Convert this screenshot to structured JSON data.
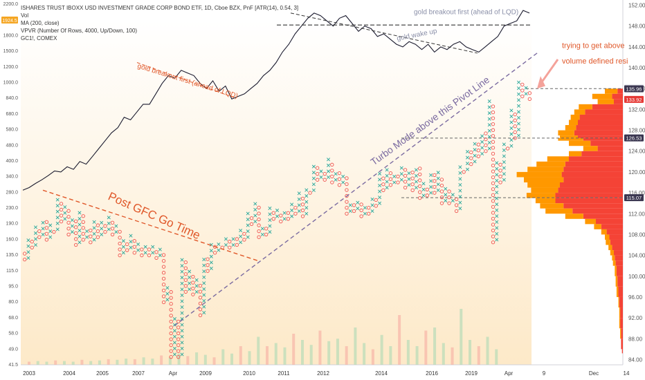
{
  "chart_data": {
    "type": "pnf",
    "legend": {
      "title": "ISHARES TRUST IBOXX USD INVESTMENT GRADE CORP BOND ETF, 1D, Cboe BZX, PnF [ATR(14), 0.54, 3]",
      "lines": [
        "Vol",
        "MA (200, close)",
        "VPVR (Number Of Rows, 4000, Up/Down, 100)",
        "GC1!, COMEX"
      ]
    },
    "price_axis": {
      "ticks": [
        "152.00",
        "148.00",
        "144.00",
        "140.00",
        "136.00",
        "132.00",
        "128.00",
        "124.00",
        "120.00",
        "116.00",
        "112.00",
        "108.00",
        "104.00",
        "100.00",
        "96.00",
        "92.00",
        "88.00",
        "84.00"
      ],
      "ylim": [
        83,
        153
      ]
    },
    "gold_axis": {
      "ticks": [
        "2200.0",
        "2000.0",
        "1800.0",
        "1500.0",
        "1200.0",
        "1000.0",
        "840.0",
        "680.0",
        "580.0",
        "480.0",
        "400.0",
        "340.0",
        "280.0",
        "230.0",
        "190.0",
        "160.0",
        "135.0",
        "115.0",
        "95.0",
        "80.0",
        "68.0",
        "58.0",
        "49.0",
        "41.5"
      ],
      "badge": "1924.5"
    },
    "x_axis": {
      "ticks": [
        "2003",
        "2004",
        "2005",
        "2007",
        "Apr",
        "2009",
        "2010",
        "2011",
        "2012",
        "2014",
        "2016",
        "2019",
        "Apr",
        "9",
        "Dec",
        "14"
      ]
    },
    "gold_series": {
      "name": "GC1!, COMEX",
      "y": [
        116.5,
        117.0,
        117.8,
        118.5,
        119.3,
        120.2,
        120.0,
        121.0,
        120.5,
        122.0,
        121.5,
        123.0,
        124.5,
        126.0,
        127.5,
        128.5,
        130.5,
        130.0,
        131.5,
        133.0,
        133.0,
        135.0,
        137.0,
        138.5,
        138.0,
        139.5,
        139.0,
        138.5,
        137.0,
        136.0,
        137.5,
        135.5,
        136.5,
        134.0,
        134.5,
        135.0,
        136.0,
        137.0,
        138.5,
        139.5,
        141.0,
        143.0,
        144.5,
        146.5,
        148.0,
        149.5,
        150.5,
        150.0,
        149.0,
        148.0,
        149.5,
        150.0,
        148.5,
        147.0,
        148.0,
        147.5,
        146.0,
        146.5,
        145.5,
        144.5,
        144.0,
        145.0,
        144.5,
        143.5,
        144.5,
        143.0,
        144.0,
        143.5,
        144.5,
        145.0,
        144.0,
        143.5,
        143.0,
        144.0,
        145.0,
        146.0,
        148.0,
        148.5,
        149.0,
        151.0,
        150.5
      ]
    },
    "pnf_columns": [
      {
        "d": "O",
        "lo": 103.2,
        "hi": 104.5
      },
      {
        "d": "X",
        "lo": 103.5,
        "hi": 107.5
      },
      {
        "d": "O",
        "lo": 105.5,
        "hi": 107.0
      },
      {
        "d": "X",
        "lo": 106.0,
        "hi": 109.5
      },
      {
        "d": "O",
        "lo": 107.5,
        "hi": 109.0
      },
      {
        "d": "X",
        "lo": 108.0,
        "hi": 111.0
      },
      {
        "d": "O",
        "lo": 107.0,
        "hi": 110.5
      },
      {
        "d": "X",
        "lo": 107.5,
        "hi": 110.0
      },
      {
        "d": "O",
        "lo": 108.5,
        "hi": 109.5
      },
      {
        "d": "X",
        "lo": 109.0,
        "hi": 115.0
      },
      {
        "d": "O",
        "lo": 110.5,
        "hi": 114.5
      },
      {
        "d": "X",
        "lo": 111.0,
        "hi": 113.5
      },
      {
        "d": "O",
        "lo": 108.0,
        "hi": 113.0
      },
      {
        "d": "X",
        "lo": 108.5,
        "hi": 111.5
      },
      {
        "d": "O",
        "lo": 106.0,
        "hi": 111.0
      },
      {
        "d": "X",
        "lo": 106.5,
        "hi": 112.5
      },
      {
        "d": "O",
        "lo": 107.0,
        "hi": 112.0
      },
      {
        "d": "X",
        "lo": 107.5,
        "hi": 109.5
      },
      {
        "d": "O",
        "lo": 106.5,
        "hi": 109.0
      },
      {
        "d": "X",
        "lo": 107.0,
        "hi": 110.5
      },
      {
        "d": "O",
        "lo": 107.5,
        "hi": 110.0
      },
      {
        "d": "X",
        "lo": 108.0,
        "hi": 111.0
      },
      {
        "d": "O",
        "lo": 108.5,
        "hi": 110.5
      },
      {
        "d": "X",
        "lo": 109.0,
        "hi": 111.5
      },
      {
        "d": "O",
        "lo": 108.0,
        "hi": 111.0
      },
      {
        "d": "X",
        "lo": 108.5,
        "hi": 110.0
      },
      {
        "d": "O",
        "lo": 104.0,
        "hi": 109.5
      },
      {
        "d": "X",
        "lo": 104.5,
        "hi": 107.5
      },
      {
        "d": "O",
        "lo": 105.0,
        "hi": 107.0
      },
      {
        "d": "X",
        "lo": 105.5,
        "hi": 108.0
      },
      {
        "d": "O",
        "lo": 104.5,
        "hi": 107.5
      },
      {
        "d": "X",
        "lo": 105.0,
        "hi": 106.5
      },
      {
        "d": "O",
        "lo": 104.0,
        "hi": 106.0
      },
      {
        "d": "X",
        "lo": 104.5,
        "hi": 106.5
      },
      {
        "d": "O",
        "lo": 104.0,
        "hi": 106.0
      },
      {
        "d": "X",
        "lo": 104.5,
        "hi": 106.0
      },
      {
        "d": "O",
        "lo": 103.5,
        "hi": 105.5
      },
      {
        "d": "X",
        "lo": 104.0,
        "hi": 105.5
      },
      {
        "d": "O",
        "lo": 95.0,
        "hi": 105.0
      },
      {
        "d": "X",
        "lo": 95.5,
        "hi": 98.0
      },
      {
        "d": "O",
        "lo": 84.5,
        "hi": 97.5
      },
      {
        "d": "X",
        "lo": 85.0,
        "hi": 92.0
      },
      {
        "d": "O",
        "lo": 84.5,
        "hi": 91.5
      },
      {
        "d": "X",
        "lo": 85.0,
        "hi": 103.5
      },
      {
        "d": "O",
        "lo": 97.0,
        "hi": 103.0
      },
      {
        "d": "X",
        "lo": 97.5,
        "hi": 101.0
      },
      {
        "d": "O",
        "lo": 96.5,
        "hi": 100.5
      },
      {
        "d": "X",
        "lo": 97.0,
        "hi": 99.5
      },
      {
        "d": "O",
        "lo": 92.5,
        "hi": 99.0
      },
      {
        "d": "X",
        "lo": 93.0,
        "hi": 104.0
      },
      {
        "d": "O",
        "lo": 101.0,
        "hi": 103.5
      },
      {
        "d": "X",
        "lo": 101.5,
        "hi": 106.5
      },
      {
        "d": "O",
        "lo": 104.5,
        "hi": 106.0
      },
      {
        "d": "X",
        "lo": 105.0,
        "hi": 107.0
      },
      {
        "d": "O",
        "lo": 105.5,
        "hi": 106.5
      },
      {
        "d": "X",
        "lo": 106.0,
        "hi": 107.5
      },
      {
        "d": "O",
        "lo": 105.5,
        "hi": 107.0
      },
      {
        "d": "X",
        "lo": 106.0,
        "hi": 108.0
      },
      {
        "d": "O",
        "lo": 106.0,
        "hi": 107.5
      },
      {
        "d": "X",
        "lo": 106.5,
        "hi": 109.0
      },
      {
        "d": "O",
        "lo": 107.0,
        "hi": 108.5
      },
      {
        "d": "X",
        "lo": 107.5,
        "hi": 112.5
      },
      {
        "d": "O",
        "lo": 110.0,
        "hi": 112.0
      },
      {
        "d": "X",
        "lo": 110.5,
        "hi": 114.0
      },
      {
        "d": "O",
        "lo": 107.5,
        "hi": 113.5
      },
      {
        "d": "X",
        "lo": 108.0,
        "hi": 110.0
      },
      {
        "d": "O",
        "lo": 108.0,
        "hi": 109.5
      },
      {
        "d": "X",
        "lo": 108.5,
        "hi": 113.5
      },
      {
        "d": "O",
        "lo": 111.0,
        "hi": 113.0
      },
      {
        "d": "X",
        "lo": 111.5,
        "hi": 113.0
      },
      {
        "d": "O",
        "lo": 110.5,
        "hi": 112.5
      },
      {
        "d": "X",
        "lo": 111.0,
        "hi": 113.0
      },
      {
        "d": "O",
        "lo": 111.0,
        "hi": 112.5
      },
      {
        "d": "X",
        "lo": 111.5,
        "hi": 114.5
      },
      {
        "d": "O",
        "lo": 112.0,
        "hi": 114.0
      },
      {
        "d": "X",
        "lo": 112.5,
        "hi": 116.0
      },
      {
        "d": "O",
        "lo": 111.5,
        "hi": 115.5
      },
      {
        "d": "X",
        "lo": 112.0,
        "hi": 117.5
      },
      {
        "d": "O",
        "lo": 116.0,
        "hi": 117.0
      },
      {
        "d": "X",
        "lo": 116.5,
        "hi": 121.5
      },
      {
        "d": "O",
        "lo": 118.5,
        "hi": 121.0
      },
      {
        "d": "X",
        "lo": 119.0,
        "hi": 121.0
      },
      {
        "d": "O",
        "lo": 118.5,
        "hi": 120.5
      },
      {
        "d": "X",
        "lo": 119.0,
        "hi": 123.0
      },
      {
        "d": "O",
        "lo": 118.0,
        "hi": 122.5
      },
      {
        "d": "X",
        "lo": 118.5,
        "hi": 120.5
      },
      {
        "d": "O",
        "lo": 117.5,
        "hi": 120.0
      },
      {
        "d": "X",
        "lo": 118.0,
        "hi": 119.5
      },
      {
        "d": "O",
        "lo": 112.0,
        "hi": 119.0
      },
      {
        "d": "X",
        "lo": 112.5,
        "hi": 114.5
      },
      {
        "d": "O",
        "lo": 112.5,
        "hi": 114.0
      },
      {
        "d": "X",
        "lo": 113.0,
        "hi": 114.5
      },
      {
        "d": "O",
        "lo": 111.5,
        "hi": 114.0
      },
      {
        "d": "X",
        "lo": 112.0,
        "hi": 114.0
      },
      {
        "d": "O",
        "lo": 112.0,
        "hi": 113.5
      },
      {
        "d": "X",
        "lo": 112.5,
        "hi": 115.5
      },
      {
        "d": "O",
        "lo": 113.5,
        "hi": 115.0
      },
      {
        "d": "X",
        "lo": 114.0,
        "hi": 120.0
      },
      {
        "d": "O",
        "lo": 116.5,
        "hi": 119.5
      },
      {
        "d": "X",
        "lo": 117.0,
        "hi": 121.0
      },
      {
        "d": "O",
        "lo": 117.5,
        "hi": 120.5
      },
      {
        "d": "X",
        "lo": 118.0,
        "hi": 120.0
      },
      {
        "d": "O",
        "lo": 118.0,
        "hi": 119.5
      },
      {
        "d": "X",
        "lo": 118.5,
        "hi": 121.0
      },
      {
        "d": "O",
        "lo": 117.0,
        "hi": 120.5
      },
      {
        "d": "X",
        "lo": 117.5,
        "hi": 120.5
      },
      {
        "d": "O",
        "lo": 116.5,
        "hi": 120.0
      },
      {
        "d": "X",
        "lo": 117.0,
        "hi": 121.5
      },
      {
        "d": "O",
        "lo": 115.0,
        "hi": 121.0
      },
      {
        "d": "X",
        "lo": 115.5,
        "hi": 118.0
      },
      {
        "d": "O",
        "lo": 115.5,
        "hi": 117.5
      },
      {
        "d": "X",
        "lo": 116.0,
        "hi": 120.0
      },
      {
        "d": "O",
        "lo": 116.0,
        "hi": 119.5
      },
      {
        "d": "X",
        "lo": 116.5,
        "hi": 120.0
      },
      {
        "d": "O",
        "lo": 114.0,
        "hi": 119.5
      },
      {
        "d": "X",
        "lo": 114.5,
        "hi": 117.0
      },
      {
        "d": "O",
        "lo": 114.0,
        "hi": 116.5
      },
      {
        "d": "X",
        "lo": 114.5,
        "hi": 116.0
      },
      {
        "d": "O",
        "lo": 112.5,
        "hi": 115.5
      },
      {
        "d": "X",
        "lo": 113.0,
        "hi": 121.0
      },
      {
        "d": "O",
        "lo": 120.0,
        "hi": 121.0
      },
      {
        "d": "X",
        "lo": 120.5,
        "hi": 125.0
      },
      {
        "d": "O",
        "lo": 121.5,
        "hi": 124.5
      },
      {
        "d": "X",
        "lo": 122.0,
        "hi": 126.5
      },
      {
        "d": "O",
        "lo": 123.0,
        "hi": 126.0
      },
      {
        "d": "X",
        "lo": 123.5,
        "hi": 128.0
      },
      {
        "d": "O",
        "lo": 124.0,
        "hi": 127.5
      },
      {
        "d": "X",
        "lo": 124.5,
        "hi": 134.0
      },
      {
        "d": "O",
        "lo": 106.5,
        "hi": 133.5
      },
      {
        "d": "X",
        "lo": 107.0,
        "hi": 122.0
      },
      {
        "d": "O",
        "lo": 118.0,
        "hi": 121.5
      },
      {
        "d": "X",
        "lo": 118.5,
        "hi": 126.0
      },
      {
        "d": "O",
        "lo": 124.5,
        "hi": 125.5
      },
      {
        "d": "X",
        "lo": 125.0,
        "hi": 132.0
      },
      {
        "d": "O",
        "lo": 126.5,
        "hi": 131.5
      },
      {
        "d": "X",
        "lo": 127.0,
        "hi": 137.5
      },
      {
        "d": "O",
        "lo": 134.5,
        "hi": 137.0
      },
      {
        "d": "X",
        "lo": 135.0,
        "hi": 136.5
      },
      {
        "d": "O",
        "lo": 134.0,
        "hi": 136.0
      }
    ],
    "volume": [
      0.05,
      0.06,
      0.05,
      0.07,
      0.06,
      0.05,
      0.08,
      0.06,
      0.07,
      0.09,
      0.08,
      0.1,
      0.09,
      0.12,
      0.1,
      0.15,
      0.12,
      0.18,
      0.14,
      0.2,
      0.16,
      0.12,
      0.25,
      0.18,
      0.3,
      0.22,
      0.45,
      0.3,
      0.35,
      0.28,
      0.5,
      0.4,
      0.32,
      0.55,
      0.38,
      0.42,
      0.3,
      0.6,
      0.35,
      0.25,
      0.48,
      0.3,
      0.8,
      0.4,
      0.3,
      0.55,
      0.6,
      0.35,
      0.28,
      0.9,
      0.4,
      0.3,
      0.45,
      0.25
    ],
    "vpvr": [
      {
        "p": 136.0,
        "up": 0.14,
        "down": 0.06
      },
      {
        "p": 135.0,
        "up": 0.22,
        "down": 0.12
      },
      {
        "p": 134.0,
        "up": 0.18,
        "down": 0.1
      },
      {
        "p": 133.0,
        "up": 0.15,
        "down": 0.34
      },
      {
        "p": 132.0,
        "up": 0.12,
        "down": 0.42
      },
      {
        "p": 131.0,
        "up": 0.1,
        "down": 0.48
      },
      {
        "p": 130.0,
        "up": 0.1,
        "down": 0.5
      },
      {
        "p": 129.0,
        "up": 0.12,
        "down": 0.52
      },
      {
        "p": 128.0,
        "up": 0.18,
        "down": 0.54
      },
      {
        "p": 127.0,
        "up": 0.2,
        "down": 0.5
      },
      {
        "p": 126.5,
        "up": 0.28,
        "down": 0.44
      },
      {
        "p": 126.0,
        "up": 0.24,
        "down": 0.36
      },
      {
        "p": 125.0,
        "up": 0.16,
        "down": 0.28
      },
      {
        "p": 124.0,
        "up": 0.14,
        "down": 0.46
      },
      {
        "p": 123.0,
        "up": 0.24,
        "down": 0.6
      },
      {
        "p": 122.0,
        "up": 0.32,
        "down": 0.64
      },
      {
        "p": 121.0,
        "up": 0.4,
        "down": 0.66
      },
      {
        "p": 120.0,
        "up": 0.5,
        "down": 0.68
      },
      {
        "p": 119.0,
        "up": 0.44,
        "down": 0.66
      },
      {
        "p": 118.0,
        "up": 0.36,
        "down": 0.7
      },
      {
        "p": 117.0,
        "up": 0.3,
        "down": 0.72
      },
      {
        "p": 116.0,
        "up": 0.32,
        "down": 0.75
      },
      {
        "p": 115.0,
        "up": 0.22,
        "down": 0.75
      },
      {
        "p": 114.0,
        "up": 0.26,
        "down": 0.66
      },
      {
        "p": 113.0,
        "up": 0.3,
        "down": 0.56
      },
      {
        "p": 112.0,
        "up": 0.2,
        "down": 0.44
      },
      {
        "p": 111.0,
        "up": 0.12,
        "down": 0.3
      },
      {
        "p": 110.0,
        "up": 0.08,
        "down": 0.24
      },
      {
        "p": 109.0,
        "up": 0.06,
        "down": 0.18
      },
      {
        "p": 108.0,
        "up": 0.05,
        "down": 0.15
      },
      {
        "p": 107.0,
        "up": 0.05,
        "down": 0.14
      },
      {
        "p": 106.0,
        "up": 0.04,
        "down": 0.12
      },
      {
        "p": 105.0,
        "up": 0.04,
        "down": 0.1
      },
      {
        "p": 104.0,
        "up": 0.03,
        "down": 0.09
      },
      {
        "p": 103.0,
        "up": 0.03,
        "down": 0.08
      },
      {
        "p": 102.0,
        "up": 0.02,
        "down": 0.07
      },
      {
        "p": 100.0,
        "up": 0.02,
        "down": 0.06
      },
      {
        "p": 98.0,
        "up": 0.02,
        "down": 0.05
      },
      {
        "p": 96.0,
        "up": 0.01,
        "down": 0.04
      },
      {
        "p": 94.0,
        "up": 0.01,
        "down": 0.03
      },
      {
        "p": 92.0,
        "up": 0.01,
        "down": 0.03
      },
      {
        "p": 90.0,
        "up": 0.01,
        "down": 0.02
      },
      {
        "p": 88.0,
        "up": 0.0,
        "down": 0.02
      },
      {
        "p": 86.0,
        "up": 0.0,
        "down": 0.01
      }
    ],
    "annotations": [
      {
        "text": "gold breakout first (ahead of LQD)",
        "color": "#8a8fa8"
      },
      {
        "text": "gold wake up",
        "color": "#8a8fa8"
      },
      {
        "text": "gold breakout first (ahead of LQD)",
        "color": "#e0582a"
      },
      {
        "text": "Post GFC Go Time",
        "color": "#e0582a"
      },
      {
        "text": "Turbo Mode above this Pivot Line",
        "color": "#7a6aa0"
      },
      {
        "text": "trying to get above\nvolume defined resi",
        "color": "#e0582a"
      }
    ],
    "price_tags": [
      {
        "label": "136.20",
        "p": 136.2,
        "color": "#f0f0f5",
        "text": "#333333"
      },
      {
        "label": "135.96",
        "p": 135.96,
        "color": "#3a3650",
        "text": "#ffffff"
      },
      {
        "label": "133.92",
        "p": 133.92,
        "color": "#e53935",
        "text": "#ffffff"
      },
      {
        "label": "126.53",
        "p": 126.53,
        "color": "#3a3650",
        "text": "#ffffff"
      },
      {
        "label": "115.07",
        "p": 115.07,
        "color": "#3a3650",
        "text": "#ffffff"
      }
    ],
    "levels": [
      136.0,
      126.5,
      115.07
    ],
    "colors": {
      "x_box": "#26a69a",
      "o_box": "#ef5350",
      "gold_line": "#1a1a2e",
      "vpvr_up": "#ff9800",
      "vpvr_down": "#f44336",
      "bg_top": "#ffffff",
      "bg_bottom": "#fde9c8"
    }
  }
}
